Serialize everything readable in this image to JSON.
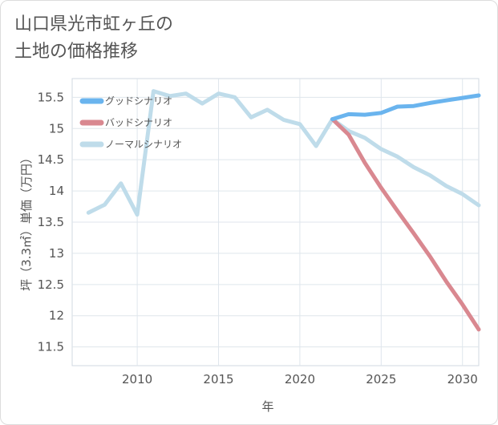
{
  "chart_data": {
    "type": "line",
    "title": "山口県光市虹ヶ丘の\n土地の価格推移",
    "xlabel": "年",
    "ylabel": "坪（3.3㎡）単価（万円）",
    "xlim": [
      2006,
      2031
    ],
    "ylim": [
      11.2,
      15.8
    ],
    "x_ticks": [
      2010,
      2015,
      2020,
      2025,
      2030
    ],
    "y_ticks": [
      11.5,
      12,
      12.5,
      13,
      13.5,
      14,
      14.5,
      15,
      15.5
    ],
    "grid": true,
    "legend_position": "top-left",
    "series": [
      {
        "name": "グッドシナリオ",
        "color": "#6ab4ee",
        "x": [
          2022,
          2023,
          2024,
          2025,
          2026,
          2027,
          2028,
          2029,
          2030,
          2031
        ],
        "values": [
          15.15,
          15.23,
          15.22,
          15.25,
          15.35,
          15.36,
          15.41,
          15.45,
          15.49,
          15.53
        ]
      },
      {
        "name": "バッドシナリオ",
        "color": "#d98890",
        "x": [
          2022,
          2023,
          2024,
          2025,
          2026,
          2027,
          2028,
          2029,
          2030,
          2031
        ],
        "values": [
          15.15,
          14.9,
          14.45,
          14.05,
          13.68,
          13.32,
          12.95,
          12.55,
          12.18,
          11.78
        ]
      },
      {
        "name": "ノーマルシナリオ",
        "color": "#bfdcea",
        "x": [
          2007,
          2008,
          2009,
          2010,
          2011,
          2012,
          2013,
          2014,
          2015,
          2016,
          2017,
          2018,
          2019,
          2020,
          2021,
          2022,
          2023,
          2024,
          2025,
          2026,
          2027,
          2028,
          2029,
          2030,
          2031
        ],
        "values": [
          13.65,
          13.78,
          14.12,
          13.62,
          15.6,
          15.52,
          15.56,
          15.4,
          15.56,
          15.5,
          15.18,
          15.3,
          15.14,
          15.07,
          14.72,
          15.15,
          14.96,
          14.85,
          14.67,
          14.55,
          14.38,
          14.25,
          14.08,
          13.95,
          13.77
        ]
      }
    ]
  }
}
